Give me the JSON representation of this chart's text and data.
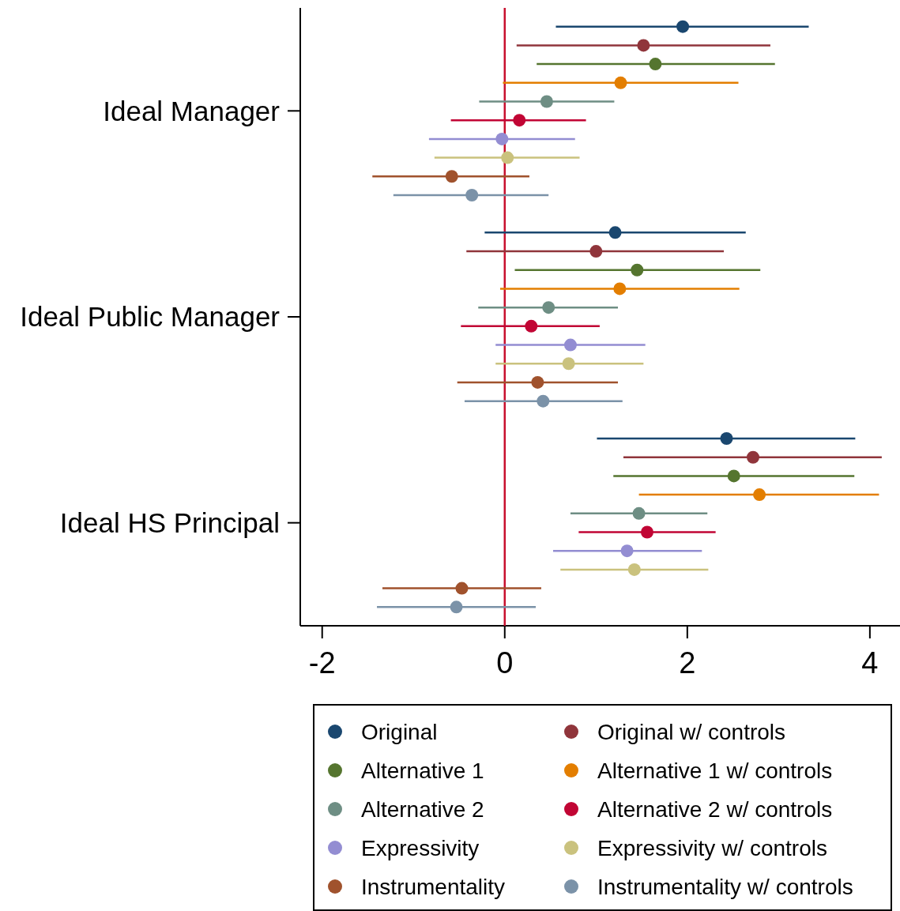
{
  "chart_data": {
    "type": "scatter",
    "orientation": "horizontal",
    "categories": [
      "Ideal Manager",
      "Ideal Public Manager",
      "Ideal HS Principal"
    ],
    "xlim": [
      -2.24,
      4.33
    ],
    "xticks": [
      -2,
      0,
      2,
      4
    ],
    "marker": "circle",
    "legend": "bottom",
    "ref_lines": [
      {
        "axis": "x",
        "value": 0,
        "color": "#c8102e"
      }
    ],
    "series": [
      {
        "name": "Original",
        "color": "#1a476f",
        "values": [
          1.95,
          1.21,
          2.43
        ],
        "errors": [
          [
            0.56,
            3.33
          ],
          [
            -0.22,
            2.64
          ],
          [
            1.01,
            3.84
          ]
        ]
      },
      {
        "name": "Original w/ controls",
        "color": "#90353b",
        "values": [
          1.52,
          1.0,
          2.72
        ],
        "errors": [
          [
            0.13,
            2.91
          ],
          [
            -0.42,
            2.4
          ],
          [
            1.3,
            4.13
          ]
        ]
      },
      {
        "name": "Alternative 1",
        "color": "#55752f",
        "values": [
          1.65,
          1.45,
          2.51
        ],
        "errors": [
          [
            0.35,
            2.96
          ],
          [
            0.11,
            2.8
          ],
          [
            1.19,
            3.83
          ]
        ]
      },
      {
        "name": "Alternative 1 w/ controls",
        "color": "#e37e00",
        "values": [
          1.27,
          1.26,
          2.79
        ],
        "errors": [
          [
            -0.02,
            2.56
          ],
          [
            -0.05,
            2.57
          ],
          [
            1.47,
            4.1
          ]
        ]
      },
      {
        "name": "Alternative 2",
        "color": "#6e8e84",
        "values": [
          0.46,
          0.48,
          1.47
        ],
        "errors": [
          [
            -0.28,
            1.2
          ],
          [
            -0.29,
            1.24
          ],
          [
            0.72,
            2.22
          ]
        ]
      },
      {
        "name": "Alternative 2 w/ controls",
        "color": "#c10534",
        "values": [
          0.16,
          0.29,
          1.56
        ],
        "errors": [
          [
            -0.59,
            0.89
          ],
          [
            -0.48,
            1.04
          ],
          [
            0.81,
            2.31
          ]
        ]
      },
      {
        "name": "Expressivity",
        "color": "#938dd2",
        "values": [
          -0.03,
          0.72,
          1.34
        ],
        "errors": [
          [
            -0.83,
            0.77
          ],
          [
            -0.1,
            1.54
          ],
          [
            0.53,
            2.16
          ]
        ]
      },
      {
        "name": "Expressivity w/ controls",
        "color": "#cac27e",
        "values": [
          0.03,
          0.7,
          1.42
        ],
        "errors": [
          [
            -0.77,
            0.82
          ],
          [
            -0.1,
            1.52
          ],
          [
            0.61,
            2.23
          ]
        ]
      },
      {
        "name": "Instrumentality",
        "color": "#a0522d",
        "values": [
          -0.58,
          0.36,
          -0.47
        ],
        "errors": [
          [
            -1.45,
            0.27
          ],
          [
            -0.52,
            1.24
          ],
          [
            -1.34,
            0.4
          ]
        ]
      },
      {
        "name": "Instrumentality w/ controls",
        "color": "#7b92a8",
        "values": [
          -0.36,
          0.42,
          -0.53
        ],
        "errors": [
          [
            -1.22,
            0.48
          ],
          [
            -0.44,
            1.29
          ],
          [
            -1.4,
            0.34
          ]
        ]
      }
    ]
  }
}
